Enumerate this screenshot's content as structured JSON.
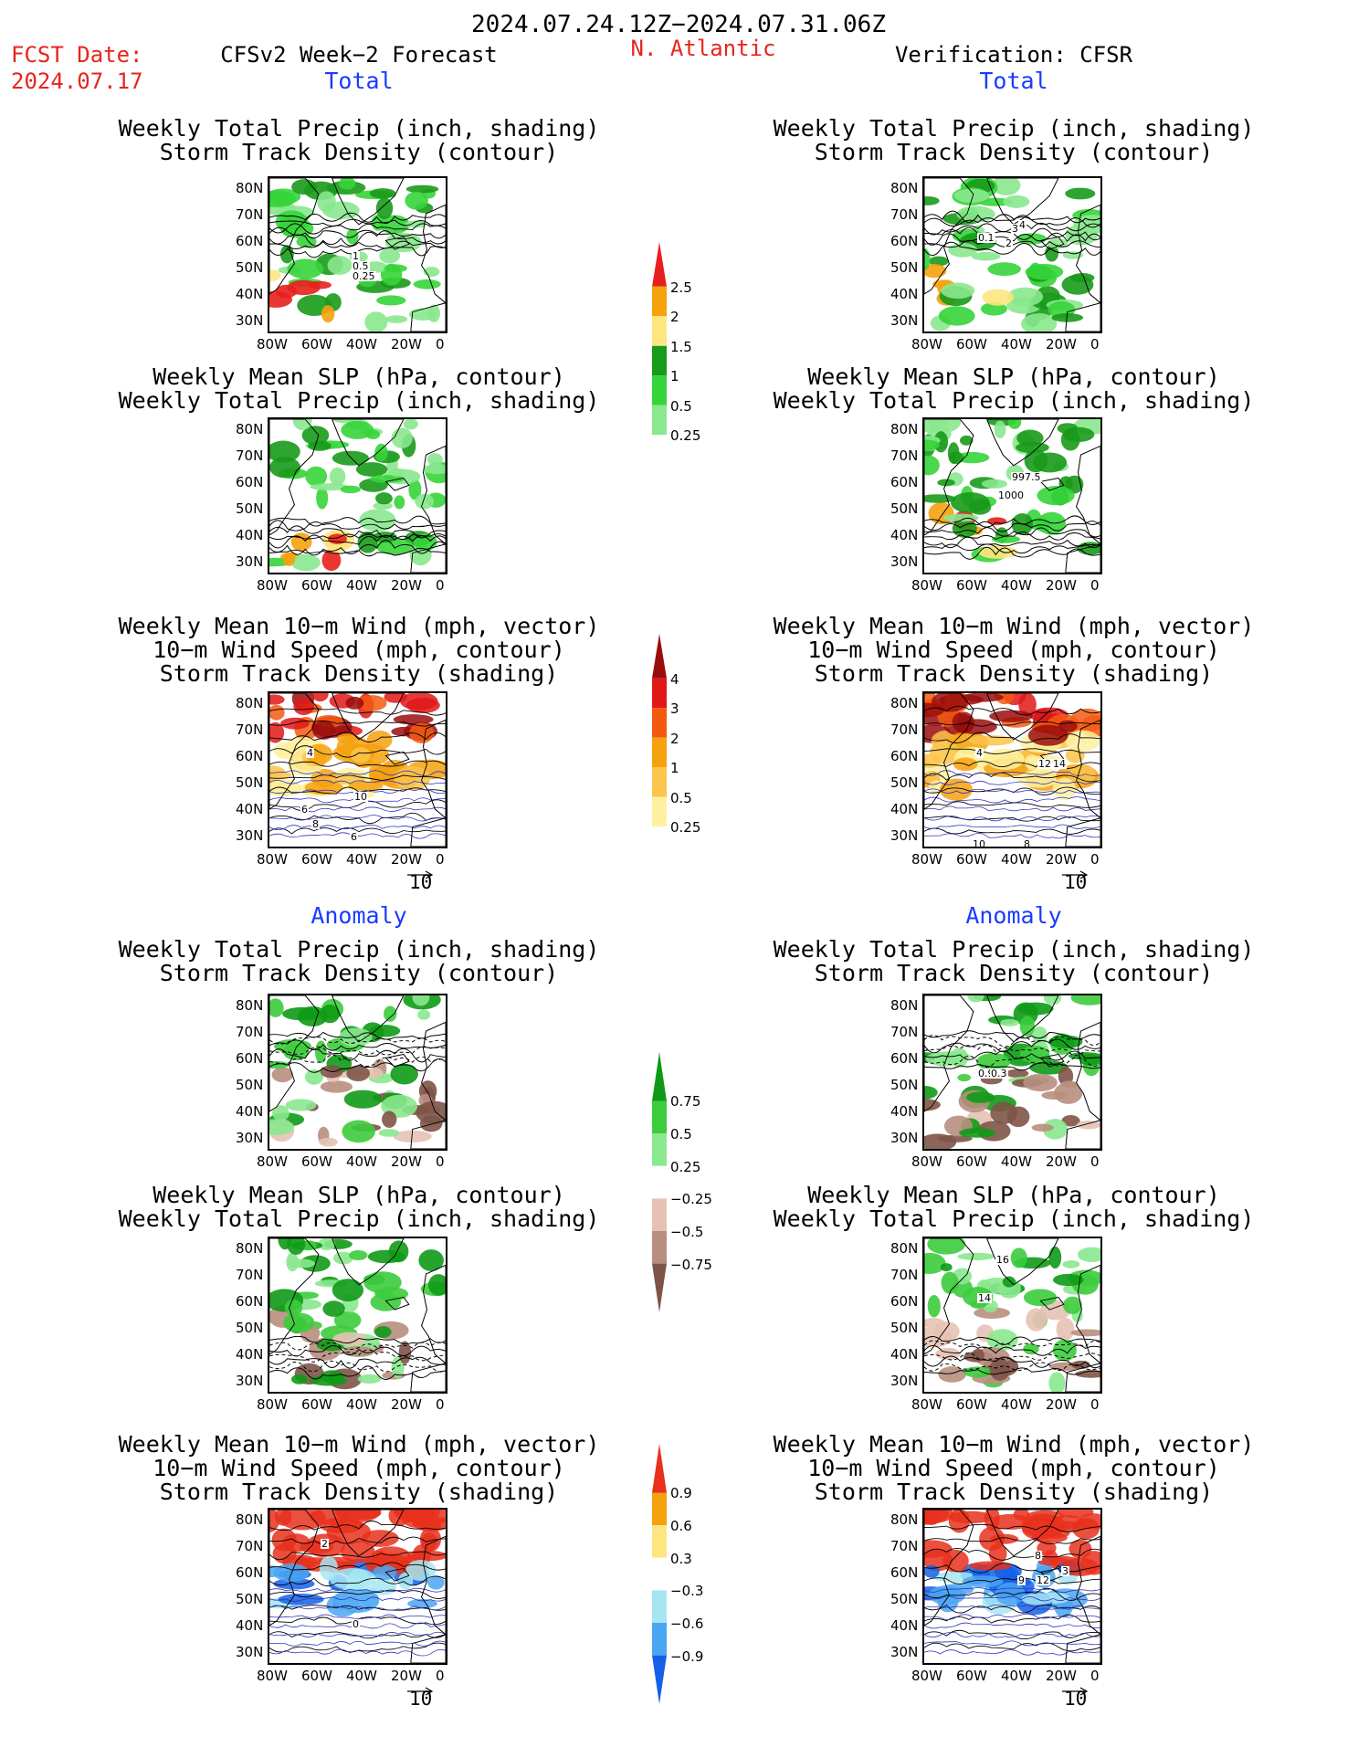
{
  "header": {
    "period": "2024.07.24.12Z−2024.07.31.06Z",
    "fcst_label": "FCST Date:",
    "fcst_date": "2024.07.17",
    "forecast_title": "CFSv2 Week−2 Forecast",
    "region": "N. Atlantic",
    "verification": "Verification: CFSR"
  },
  "sections": {
    "total": "Total",
    "anomaly": "Anomaly"
  },
  "panel_titles": {
    "precip_storm": [
      "Weekly Total Precip (inch, shading)",
      "Storm Track Density (contour)"
    ],
    "slp_precip": [
      "Weekly Mean SLP (hPa, contour)",
      "Weekly Total Precip (inch, shading)"
    ],
    "wind_storm": [
      "Weekly Mean 10−m Wind (mph, vector)",
      "10−m Wind Speed (mph, contour)",
      "Storm Track Density (shading)"
    ]
  },
  "axes": {
    "lat_ticks": [
      "80N",
      "70N",
      "60N",
      "50N",
      "40N",
      "30N"
    ],
    "lon_ticks": [
      "80W",
      "60W",
      "40W",
      "20W",
      "0"
    ]
  },
  "vector_ref": "10",
  "colorbars": {
    "precip_total": [
      "2.5",
      "2",
      "1.5",
      "1",
      "0.5",
      "0.25"
    ],
    "storm_total": [
      "4",
      "3",
      "2",
      "1",
      "0.5",
      "0.25"
    ],
    "precip_anom": [
      "0.75",
      "0.5",
      "0.25",
      "−0.25",
      "−0.5",
      "−0.75"
    ],
    "storm_anom": [
      "0.9",
      "0.6",
      "0.3",
      "−0.3",
      "−0.6",
      "−0.9"
    ],
    "colors": {
      "precip_total": [
        "#e8201c",
        "#f6a10e",
        "#fde680",
        "#189a1a",
        "#36d43a",
        "#8ae88e",
        "#ffffff"
      ],
      "storm_total": [
        "#9a0d0d",
        "#e11818",
        "#f35a10",
        "#f6a10e",
        "#fbc44a",
        "#fdf1a0",
        "#ffffff"
      ],
      "precip_anom": [
        "#0e9a16",
        "#3ccc3c",
        "#8ae88e",
        "#ffffff",
        "#e6c2b4",
        "#b88e80",
        "#7e5448"
      ],
      "storm_anom": [
        "#e8301c",
        "#f6a10e",
        "#fde680",
        "#ffffff",
        "#a6e6f2",
        "#4aa6f2",
        "#1460e8"
      ]
    }
  },
  "map_labels": {
    "t_fc_precip": [
      "1",
      "0.5",
      "0.25"
    ],
    "t_ob_precip": [
      "0.1",
      "3",
      "4",
      "2"
    ],
    "t_ob_slp": [
      "997.5",
      "1000"
    ],
    "t_fc_wind": [
      "4",
      "6",
      "10",
      "8",
      "6"
    ],
    "t_ob_wind": [
      "4",
      "12",
      "14",
      "10",
      "8"
    ],
    "a_ob_precip": [
      "0.9",
      "0.3"
    ],
    "a_ob_slp": [
      "16",
      "14"
    ],
    "a_fc_wind": [
      "2",
      "0"
    ],
    "a_ob_wind": [
      "8",
      "3",
      "9",
      "12"
    ]
  }
}
